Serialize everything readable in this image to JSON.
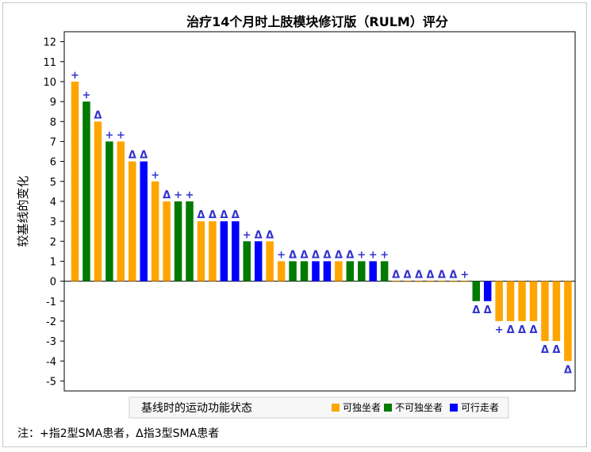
{
  "chart_data": {
    "type": "bar",
    "title": "治疗14个月时上肢模块修订版（RULM）评分",
    "ylabel": "较基线的变化",
    "xlabel": "",
    "ylim": [
      -5.5,
      12.5
    ],
    "yticks": [
      12,
      11,
      10,
      9,
      8,
      7,
      6,
      5,
      4,
      3,
      2,
      1,
      0,
      -1,
      -2,
      -3,
      -4,
      -5
    ],
    "grid": false,
    "legend": {
      "title": "基线时的运动功能状态",
      "position": "bottom",
      "entries": [
        {
          "label": "可独坐者",
          "color": "#FFA500"
        },
        {
          "label": "不可独坐者",
          "color": "#007A00"
        },
        {
          "label": "可行走者",
          "color": "#0000FF"
        }
      ]
    },
    "markers": {
      "plus": "+",
      "delta": "Δ",
      "color": "#3333CC"
    },
    "bars": [
      {
        "value": 10,
        "group": "可独坐者",
        "marker": "+"
      },
      {
        "value": 9,
        "group": "不可独坐者",
        "marker": "+"
      },
      {
        "value": 8,
        "group": "可独坐者",
        "marker": "Δ"
      },
      {
        "value": 7,
        "group": "不可独坐者",
        "marker": "+"
      },
      {
        "value": 7,
        "group": "可独坐者",
        "marker": "+"
      },
      {
        "value": 6,
        "group": "可独坐者",
        "marker": "Δ"
      },
      {
        "value": 6,
        "group": "可行走者",
        "marker": "Δ"
      },
      {
        "value": 5,
        "group": "可独坐者",
        "marker": "+"
      },
      {
        "value": 4,
        "group": "可独坐者",
        "marker": "Δ"
      },
      {
        "value": 4,
        "group": "不可独坐者",
        "marker": "+"
      },
      {
        "value": 4,
        "group": "不可独坐者",
        "marker": "+"
      },
      {
        "value": 3,
        "group": "可独坐者",
        "marker": "Δ"
      },
      {
        "value": 3,
        "group": "可独坐者",
        "marker": "Δ"
      },
      {
        "value": 3,
        "group": "可行走者",
        "marker": "Δ"
      },
      {
        "value": 3,
        "group": "可行走者",
        "marker": "Δ"
      },
      {
        "value": 2,
        "group": "不可独坐者",
        "marker": "+"
      },
      {
        "value": 2,
        "group": "可行走者",
        "marker": "Δ"
      },
      {
        "value": 2,
        "group": "可独坐者",
        "marker": "Δ"
      },
      {
        "value": 1,
        "group": "可独坐者",
        "marker": "+"
      },
      {
        "value": 1,
        "group": "不可独坐者",
        "marker": "Δ"
      },
      {
        "value": 1,
        "group": "不可独坐者",
        "marker": "Δ"
      },
      {
        "value": 1,
        "group": "可行走者",
        "marker": "Δ"
      },
      {
        "value": 1,
        "group": "可行走者",
        "marker": "Δ"
      },
      {
        "value": 1,
        "group": "可独坐者",
        "marker": "Δ"
      },
      {
        "value": 1,
        "group": "不可独坐者",
        "marker": "Δ"
      },
      {
        "value": 1,
        "group": "不可独坐者",
        "marker": "+"
      },
      {
        "value": 1,
        "group": "可行走者",
        "marker": "+"
      },
      {
        "value": 1,
        "group": "不可独坐者",
        "marker": "+"
      },
      {
        "value": 0,
        "group": "可独坐者",
        "marker": "Δ"
      },
      {
        "value": 0,
        "group": "可独坐者",
        "marker": "Δ"
      },
      {
        "value": 0,
        "group": "可独坐者",
        "marker": "Δ"
      },
      {
        "value": 0,
        "group": "可独坐者",
        "marker": "Δ"
      },
      {
        "value": 0,
        "group": "可独坐者",
        "marker": "Δ"
      },
      {
        "value": 0,
        "group": "可独坐者",
        "marker": "Δ"
      },
      {
        "value": 0,
        "group": "可独坐者",
        "marker": "+"
      },
      {
        "value": -1,
        "group": "不可独坐者",
        "marker": "Δ"
      },
      {
        "value": -1,
        "group": "可行走者",
        "marker": "Δ"
      },
      {
        "value": -2,
        "group": "可独坐者",
        "marker": "+"
      },
      {
        "value": -2,
        "group": "可独坐者",
        "marker": "Δ"
      },
      {
        "value": -2,
        "group": "可独坐者",
        "marker": "Δ"
      },
      {
        "value": -2,
        "group": "可独坐者",
        "marker": "Δ"
      },
      {
        "value": -3,
        "group": "可独坐者",
        "marker": "Δ"
      },
      {
        "value": -3,
        "group": "可独坐者",
        "marker": "Δ"
      },
      {
        "value": -4,
        "group": "可独坐者",
        "marker": "Δ"
      }
    ]
  },
  "footnote": "注：+指2型SMA患者，Δ指3型SMA患者"
}
